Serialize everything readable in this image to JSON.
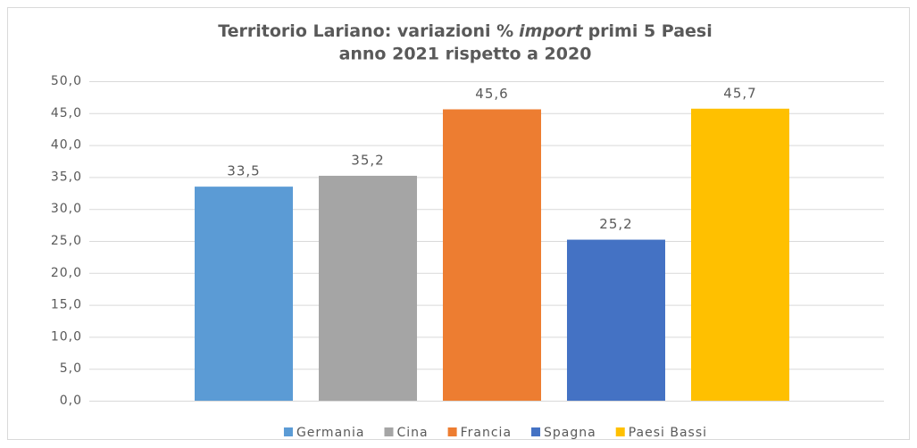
{
  "chart_data": {
    "type": "bar",
    "title": [
      "Territorio Lariano: variazioni %",
      "import",
      "primi 5 Paesi",
      "anno 2021 rispetto a 2020"
    ],
    "series": [
      {
        "name": "Germania",
        "color": "#5b9bd5",
        "values": [
          33.5
        ],
        "value_labels": [
          "33,5"
        ]
      },
      {
        "name": "Cina",
        "color": "#a5a5a5",
        "values": [
          35.2
        ],
        "value_labels": [
          "35,2"
        ]
      },
      {
        "name": "Francia",
        "color": "#ed7d31",
        "values": [
          45.6
        ],
        "value_labels": [
          "45,6"
        ]
      },
      {
        "name": "Spagna",
        "color": "#4472c4",
        "values": [
          25.2
        ],
        "value_labels": [
          "25,2"
        ]
      },
      {
        "name": "Paesi Bassi",
        "color": "#ffc000",
        "values": [
          45.7
        ],
        "value_labels": [
          "45,7"
        ]
      }
    ],
    "ylim": [
      0,
      50
    ],
    "yticks": [
      {
        "value": 0,
        "label": "0,0"
      },
      {
        "value": 5,
        "label": "5,0"
      },
      {
        "value": 10,
        "label": "10,0"
      },
      {
        "value": 15,
        "label": "15,0"
      },
      {
        "value": 20,
        "label": "20,0"
      },
      {
        "value": 25,
        "label": "25,0"
      },
      {
        "value": 30,
        "label": "30,0"
      },
      {
        "value": 35,
        "label": "35,0"
      },
      {
        "value": 40,
        "label": "40,0"
      },
      {
        "value": 45,
        "label": "45,0"
      },
      {
        "value": 50,
        "label": "50,0"
      }
    ],
    "grid": true,
    "legend": "bottom"
  }
}
